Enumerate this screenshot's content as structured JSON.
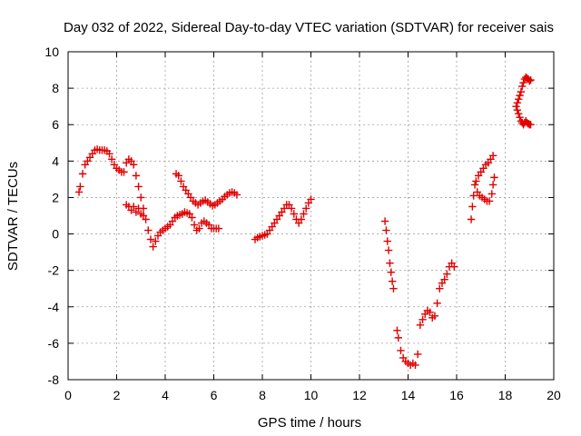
{
  "chart_data": {
    "type": "scatter",
    "title": "Day 032 of 2022, Sidereal Day-to-day VTEC variation (SDTVAR) for receiver sais",
    "xlabel": "GPS time / hours",
    "ylabel": "SDTVAR / TECUs",
    "xlim": [
      0,
      20
    ],
    "ylim": [
      -8,
      10
    ],
    "xticks": [
      "0",
      "2",
      "4",
      "6",
      "8",
      "10",
      "12",
      "14",
      "16",
      "18",
      "20"
    ],
    "yticks": [
      "-8",
      "-6",
      "-4",
      "-2",
      "0",
      "2",
      "4",
      "6",
      "8",
      "10"
    ],
    "grid": true,
    "marker": "plus",
    "color": "#e00000",
    "segments": [
      {
        "x": [
          0.45,
          0.5,
          0.6,
          0.7,
          0.8,
          0.9,
          1.0,
          1.1,
          1.2,
          1.3,
          1.4,
          1.5,
          1.6,
          1.7,
          1.8,
          1.9,
          2.0,
          2.1,
          2.2,
          2.3,
          2.4,
          2.5,
          2.6,
          2.7,
          2.8,
          2.9,
          3.0,
          3.1,
          3.2,
          3.3,
          3.4,
          3.5,
          3.6,
          3.7,
          3.8,
          3.9,
          4.0,
          4.1,
          4.2,
          4.3,
          4.4,
          4.5,
          4.6,
          4.7,
          4.8,
          4.9,
          5.0,
          5.1,
          5.2,
          5.3,
          5.4,
          5.5,
          5.6,
          5.7,
          5.8,
          5.9,
          6.0,
          6.1,
          6.2
        ],
        "y": [
          2.3,
          2.6,
          3.3,
          3.8,
          4.0,
          4.2,
          4.4,
          4.6,
          4.65,
          4.6,
          4.6,
          4.6,
          4.55,
          4.4,
          4.1,
          3.8,
          3.6,
          3.5,
          3.4,
          3.4,
          3.9,
          4.1,
          4.0,
          3.8,
          3.2,
          2.6,
          2.0,
          1.4,
          0.8,
          0.2,
          -0.3,
          -0.7,
          -0.4,
          -0.1,
          0.1,
          0.2,
          0.3,
          0.4,
          0.5,
          0.7,
          0.9,
          1.0,
          1.05,
          1.1,
          1.2,
          1.15,
          1.1,
          0.9,
          0.5,
          0.2,
          0.3,
          0.6,
          0.7,
          0.6,
          0.5,
          0.3,
          0.3,
          0.3,
          0.3
        ]
      },
      {
        "x": [
          2.4,
          2.5,
          2.6,
          2.7,
          2.8,
          2.9,
          3.0,
          3.1
        ],
        "y": [
          1.6,
          1.5,
          1.3,
          1.5,
          1.2,
          1.4,
          1.1,
          1.0
        ]
      },
      {
        "x": [
          4.45,
          4.55,
          4.65,
          4.75,
          4.85,
          4.95,
          5.05,
          5.15,
          5.25,
          5.35,
          5.45,
          5.55,
          5.65,
          5.75,
          5.85,
          5.95,
          6.05,
          6.15,
          6.25,
          6.35,
          6.45,
          6.55,
          6.65,
          6.75,
          6.85,
          6.95
        ],
        "y": [
          3.3,
          3.2,
          2.9,
          2.6,
          2.4,
          2.2,
          2.0,
          1.8,
          1.7,
          1.6,
          1.7,
          1.8,
          1.85,
          1.75,
          1.65,
          1.55,
          1.6,
          1.7,
          1.8,
          1.9,
          2.05,
          2.15,
          2.25,
          2.3,
          2.25,
          2.15
        ]
      },
      {
        "x": [
          7.7,
          7.8,
          7.9,
          8.0,
          8.1,
          8.2,
          8.3,
          8.4,
          8.5,
          8.6,
          8.7,
          8.8,
          8.9,
          9.0,
          9.1,
          9.2,
          9.3,
          9.4,
          9.5,
          9.6,
          9.7,
          9.8,
          9.9,
          10.0
        ],
        "y": [
          -0.3,
          -0.2,
          -0.15,
          -0.1,
          -0.05,
          0.0,
          0.2,
          0.4,
          0.6,
          0.8,
          1.0,
          1.2,
          1.4,
          1.6,
          1.6,
          1.4,
          1.1,
          0.8,
          0.6,
          0.8,
          1.1,
          1.4,
          1.7,
          1.9
        ]
      },
      {
        "x": [
          13.05,
          13.1,
          13.15,
          13.2,
          13.25,
          13.3,
          13.35,
          13.4
        ],
        "y": [
          0.7,
          0.2,
          -0.4,
          -0.9,
          -1.6,
          -2.1,
          -2.6,
          -3.0
        ]
      },
      {
        "x": [
          13.55,
          13.6,
          13.7,
          13.8,
          13.9,
          14.0,
          14.1,
          14.2,
          14.3,
          14.4,
          14.5,
          14.6,
          14.7,
          14.8,
          14.9,
          15.0,
          15.1,
          15.2,
          15.3,
          15.4,
          15.5,
          15.6,
          15.7,
          15.8,
          15.9
        ],
        "y": [
          -5.3,
          -5.7,
          -6.4,
          -6.8,
          -7.0,
          -7.1,
          -7.2,
          -7.1,
          -7.2,
          -6.6,
          -5.0,
          -4.7,
          -4.4,
          -4.2,
          -4.3,
          -4.6,
          -4.5,
          -3.8,
          -3.0,
          -2.7,
          -2.5,
          -2.2,
          -1.8,
          -1.6,
          -1.8
        ]
      },
      {
        "x": [
          16.6,
          16.65,
          16.7,
          16.75,
          16.8,
          16.9,
          17.0,
          17.1,
          17.2,
          17.3,
          17.4,
          17.5
        ],
        "y": [
          0.8,
          1.5,
          2.1,
          2.7,
          2.9,
          3.2,
          3.4,
          3.6,
          3.8,
          3.9,
          4.1,
          4.3
        ]
      },
      {
        "x": [
          16.85,
          16.95,
          17.05,
          17.15,
          17.25,
          17.35,
          17.45,
          17.5,
          17.55
        ],
        "y": [
          2.3,
          2.1,
          2.0,
          1.9,
          1.8,
          1.8,
          2.2,
          2.7,
          3.1
        ]
      },
      {
        "x": [
          18.45,
          18.5,
          18.55,
          18.6,
          18.65,
          18.7,
          18.75,
          18.8,
          18.85,
          18.9,
          18.95,
          19.0,
          19.05
        ],
        "y": [
          7.0,
          6.8,
          6.6,
          6.4,
          6.2,
          6.1,
          6.0,
          6.1,
          6.2,
          6.1,
          6.05,
          6.0,
          6.0
        ]
      },
      {
        "x": [
          18.5,
          18.55,
          18.6,
          18.65,
          18.7,
          18.75,
          18.8,
          18.85,
          18.9,
          18.95,
          19.0,
          19.05
        ],
        "y": [
          7.2,
          7.4,
          7.6,
          7.8,
          8.1,
          8.3,
          8.5,
          8.6,
          8.55,
          8.5,
          8.4,
          8.45
        ]
      }
    ]
  }
}
